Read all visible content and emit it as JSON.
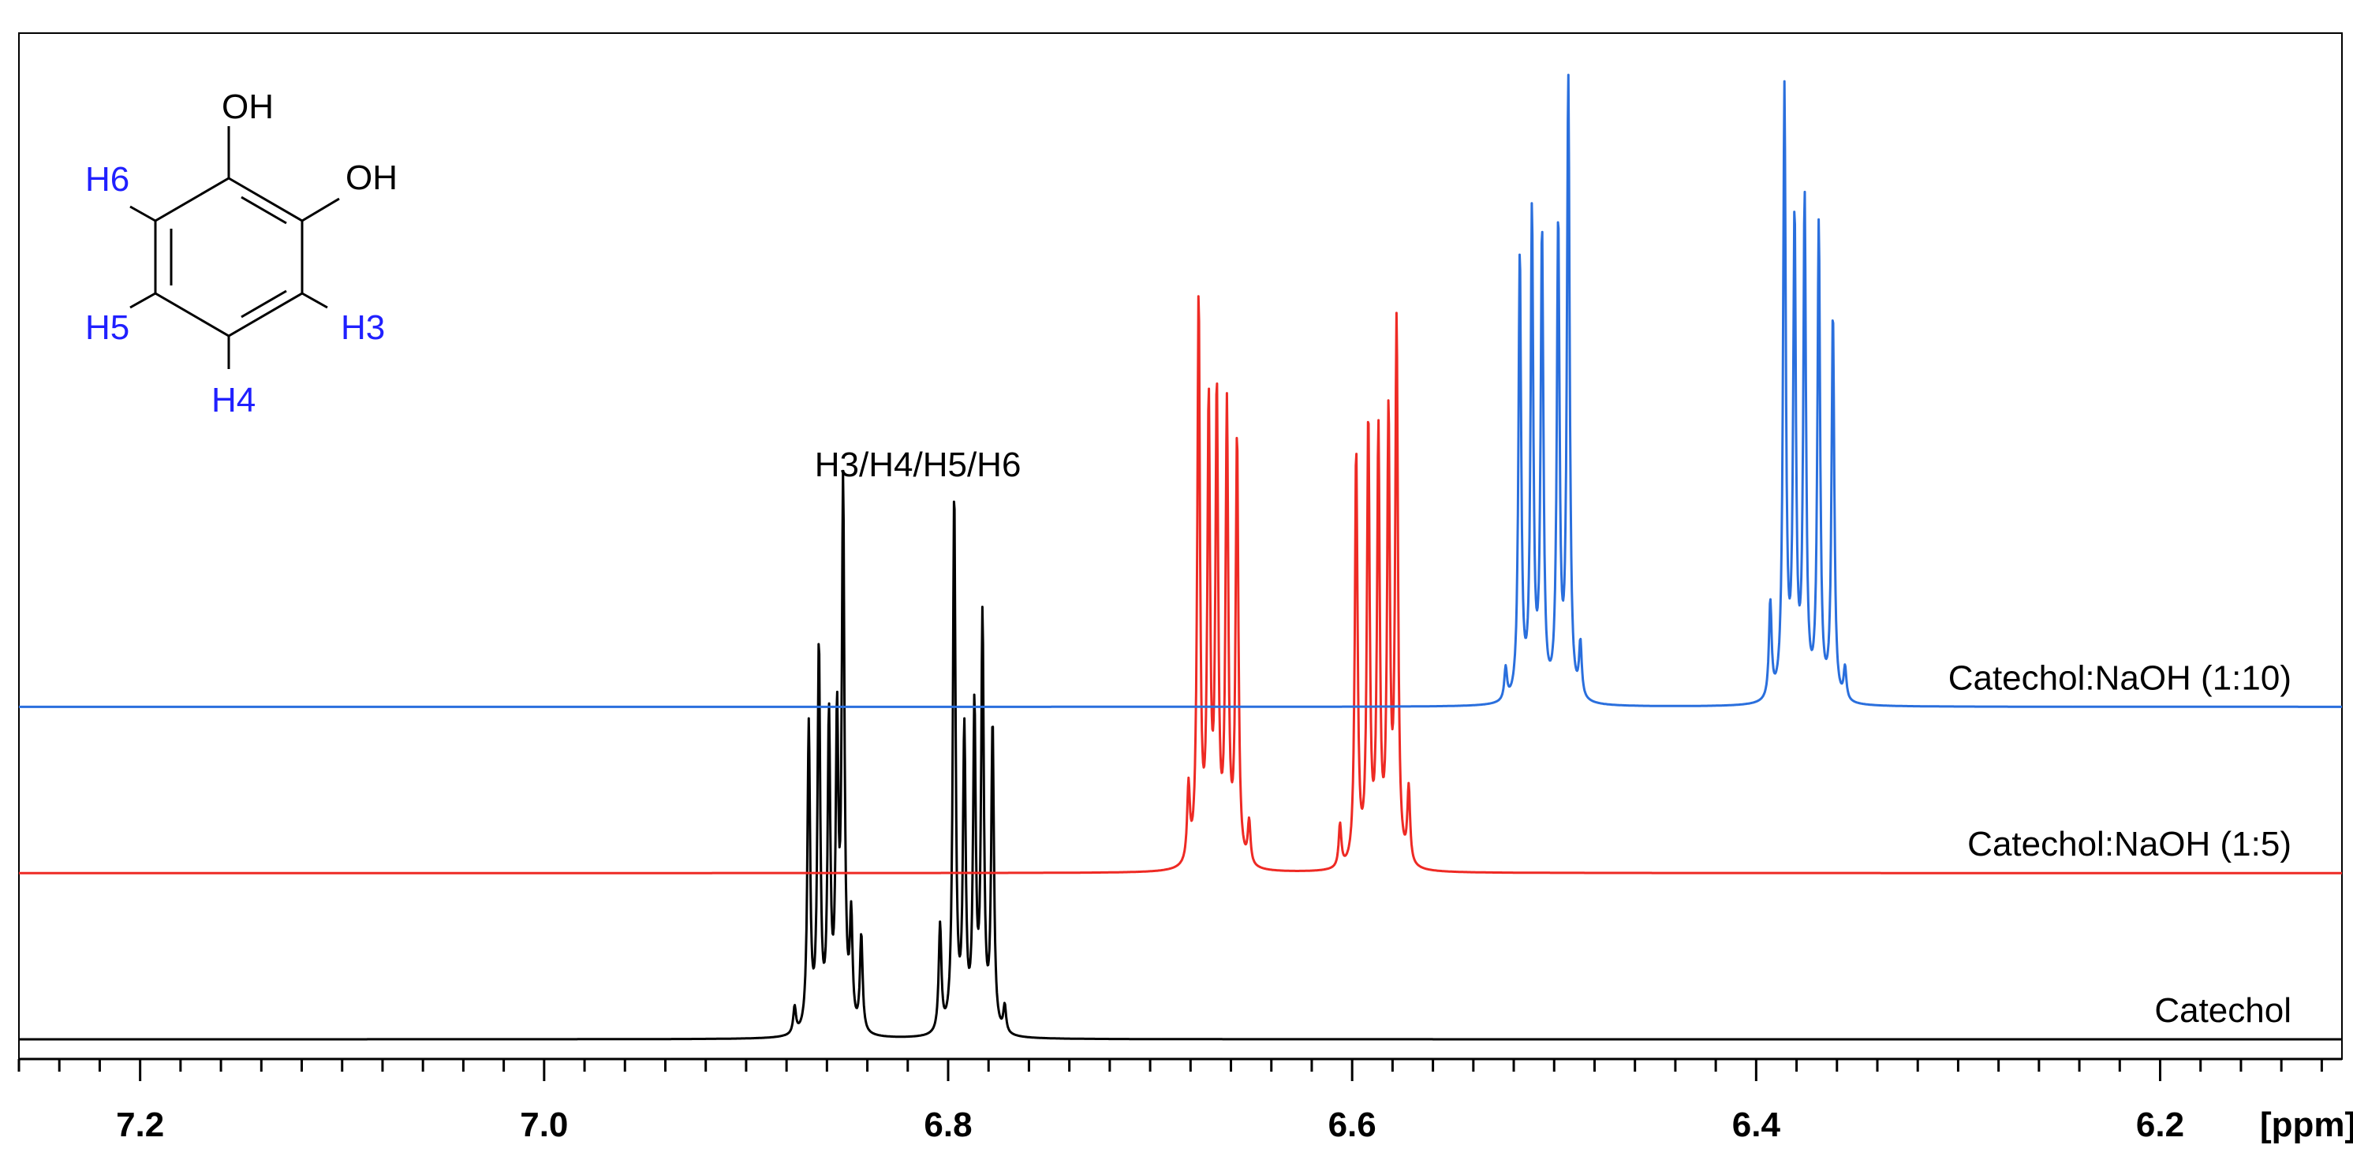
{
  "chart_data": {
    "type": "line",
    "title": "",
    "xlabel": "[ppm]",
    "ylabel": "",
    "x_reversed": true,
    "xlim": [
      7.26,
      6.11
    ],
    "x_major_ticks": [
      7.2,
      7.0,
      6.8,
      6.6,
      6.4,
      6.2
    ],
    "x_tick_labels": [
      "7.2",
      "7.0",
      "6.8",
      "6.6",
      "6.4",
      "6.2"
    ],
    "x_minor_step": 0.02,
    "grid": false,
    "legend": "none",
    "peak_annotation": {
      "text": "H3/H4/H5/H6",
      "x": 6.815
    },
    "series": [
      {
        "name": "Catechol",
        "color": "#000000",
        "baseline_offset": 0,
        "peaks": [
          {
            "x": 6.876,
            "h": 0.05
          },
          {
            "x": 6.869,
            "h": 0.57
          },
          {
            "x": 6.864,
            "h": 0.71
          },
          {
            "x": 6.859,
            "h": 0.57
          },
          {
            "x": 6.855,
            "h": 0.55
          },
          {
            "x": 6.852,
            "h": 1.0
          },
          {
            "x": 6.848,
            "h": 0.2
          },
          {
            "x": 6.843,
            "h": 0.18
          },
          {
            "x": 6.804,
            "h": 0.2
          },
          {
            "x": 6.797,
            "h": 1.0
          },
          {
            "x": 6.792,
            "h": 0.55
          },
          {
            "x": 6.787,
            "h": 0.59
          },
          {
            "x": 6.783,
            "h": 0.76
          },
          {
            "x": 6.778,
            "h": 0.57
          },
          {
            "x": 6.772,
            "h": 0.05
          }
        ]
      },
      {
        "name": "Catechol:NaOH (1:5)",
        "color": "#ee2a24",
        "baseline_offset": 0.31,
        "peaks": [
          {
            "x": 6.606,
            "h": 0.08
          },
          {
            "x": 6.598,
            "h": 0.77
          },
          {
            "x": 6.592,
            "h": 0.82
          },
          {
            "x": 6.587,
            "h": 0.79
          },
          {
            "x": 6.582,
            "h": 0.82
          },
          {
            "x": 6.578,
            "h": 1.0
          },
          {
            "x": 6.572,
            "h": 0.14
          },
          {
            "x": 6.681,
            "h": 0.14
          },
          {
            "x": 6.676,
            "h": 1.05
          },
          {
            "x": 6.671,
            "h": 0.84
          },
          {
            "x": 6.667,
            "h": 0.86
          },
          {
            "x": 6.662,
            "h": 0.84
          },
          {
            "x": 6.657,
            "h": 0.79
          },
          {
            "x": 6.651,
            "h": 0.08
          }
        ]
      },
      {
        "name": "Catechol:NaOH (1:10)",
        "color": "#2a6fdd",
        "baseline_offset": 0.62,
        "peaks": [
          {
            "x": 6.524,
            "h": 0.06
          },
          {
            "x": 6.517,
            "h": 0.83
          },
          {
            "x": 6.511,
            "h": 0.9
          },
          {
            "x": 6.506,
            "h": 0.86
          },
          {
            "x": 6.498,
            "h": 0.88
          },
          {
            "x": 6.493,
            "h": 1.15
          },
          {
            "x": 6.487,
            "h": 0.1
          },
          {
            "x": 6.393,
            "h": 0.18
          },
          {
            "x": 6.386,
            "h": 1.13
          },
          {
            "x": 6.381,
            "h": 0.88
          },
          {
            "x": 6.376,
            "h": 0.92
          },
          {
            "x": 6.369,
            "h": 0.88
          },
          {
            "x": 6.362,
            "h": 0.72
          },
          {
            "x": 6.356,
            "h": 0.06
          }
        ]
      }
    ]
  },
  "molecule": {
    "oh_top": "OH",
    "oh_right": "OH",
    "h6": "H6",
    "h5": "H5",
    "h3": "H3",
    "h4": "H4",
    "h_label_color": "#2020ff"
  }
}
